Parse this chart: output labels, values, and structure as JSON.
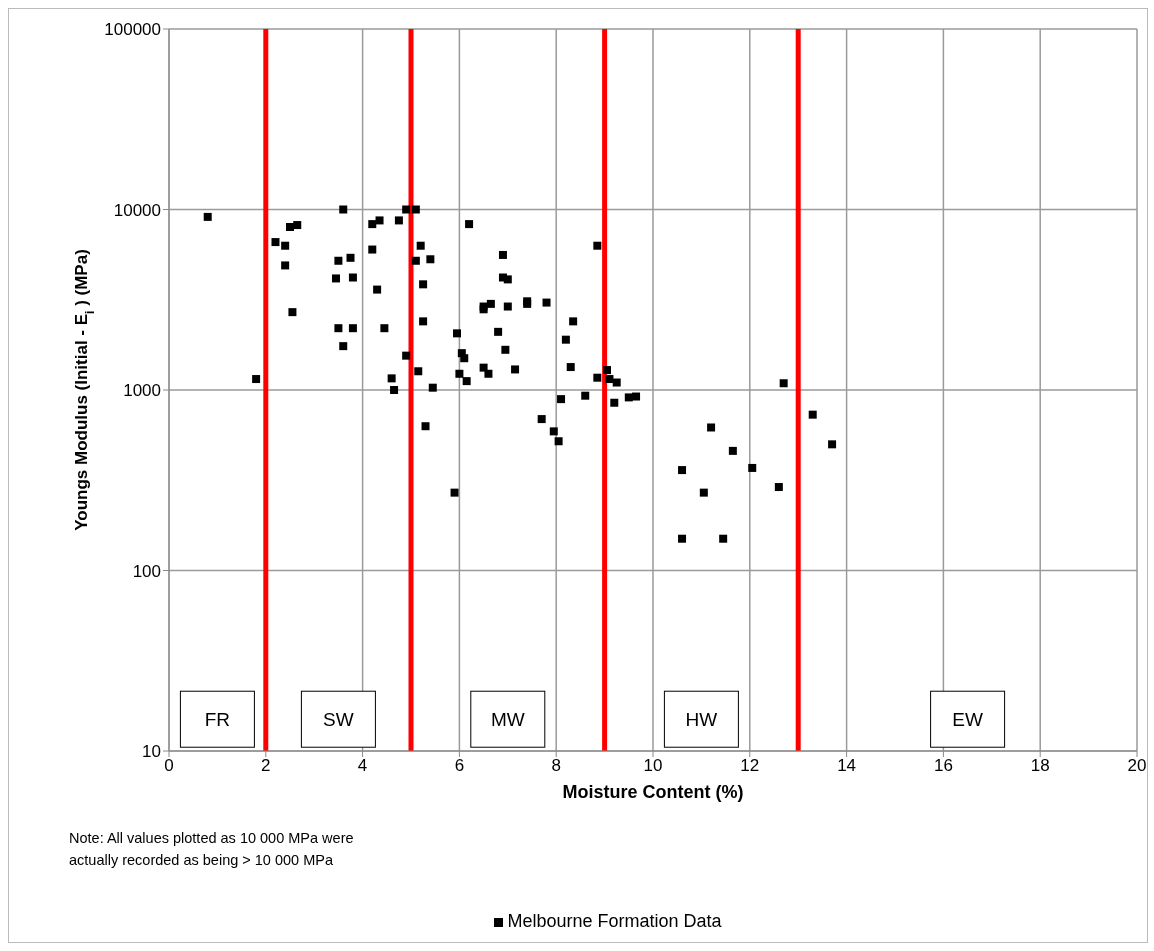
{
  "chart_data": {
    "type": "scatter",
    "xlabel": "Moisture Content (%)",
    "ylabel": "Youngs Modulus (Initial - E$_{i}$ ) (MPa)",
    "log": "y",
    "grid": true,
    "legend": "bottom",
    "marker": "square",
    "xlim": [
      0,
      20
    ],
    "xticks": [
      0,
      2,
      4,
      6,
      8,
      10,
      12,
      14,
      16,
      18,
      20
    ],
    "ylim": [
      10,
      100000
    ],
    "yticks": [
      10,
      100,
      1000,
      10000,
      100000
    ],
    "series": [
      {
        "name": "Melbourne Formation Data",
        "color": "#000000",
        "x": [
          0.8,
          1.8,
          2.2,
          2.4,
          2.4,
          2.5,
          2.65,
          2.55,
          3.6,
          3.5,
          3.45,
          3.75,
          3.8,
          3.5,
          3.8,
          3.6,
          4.2,
          4.35,
          4.2,
          4.3,
          4.45,
          4.75,
          4.9,
          4.6,
          4.65,
          4.9,
          5.1,
          5.2,
          5.1,
          5.25,
          5.25,
          5.15,
          5.3,
          5.4,
          5.45,
          5.95,
          5.9,
          6.2,
          6.0,
          6.05,
          6.1,
          6.15,
          6.5,
          6.5,
          6.65,
          6.5,
          6.6,
          6.8,
          6.9,
          6.9,
          7.0,
          7.0,
          6.95,
          7.15,
          7.4,
          7.4,
          7.8,
          7.7,
          7.95,
          8.05,
          8.2,
          8.3,
          8.1,
          8.35,
          8.6,
          8.85,
          8.85,
          9.05,
          9.1,
          9.25,
          9.2,
          9.5,
          9.65,
          10.6,
          10.6,
          11.05,
          11.2,
          11.65,
          11.45,
          12.05,
          12.6,
          12.7,
          13.3,
          13.7
        ],
        "values": [
          9100,
          1150,
          6600,
          6300,
          4900,
          8000,
          8200,
          2700,
          10000,
          5200,
          4150,
          5400,
          4200,
          2200,
          2200,
          1750,
          8300,
          8700,
          6000,
          3600,
          2200,
          8700,
          10000,
          1160,
          1000,
          1550,
          10000,
          6300,
          5200,
          3850,
          2400,
          1270,
          630,
          5300,
          1030,
          2060,
          270,
          8300,
          1230,
          1600,
          1500,
          1120,
          2800,
          2900,
          3000,
          1330,
          1230,
          2100,
          5600,
          4200,
          4100,
          2900,
          1670,
          1300,
          3100,
          3000,
          3050,
          690,
          590,
          520,
          1900,
          1340,
          890,
          2400,
          930,
          6300,
          1170,
          1290,
          1150,
          1100,
          850,
          910,
          920,
          360,
          150,
          270,
          620,
          460,
          150,
          370,
          290,
          1090,
          730,
          500
        ]
      }
    ],
    "ref_lines": [
      {
        "axis": "x",
        "value": 2,
        "color": "#ff0000"
      },
      {
        "axis": "x",
        "value": 5,
        "color": "#ff0000"
      },
      {
        "axis": "x",
        "value": 9,
        "color": "#ff0000"
      },
      {
        "axis": "x",
        "value": 13,
        "color": "#ff0000"
      }
    ],
    "annotations": [
      "FR",
      "SW",
      "MW",
      "HW",
      "EW",
      "Note: All values plotted as 10 000  MPa were actually recorded as  being > 10 000 MPa"
    ]
  }
}
